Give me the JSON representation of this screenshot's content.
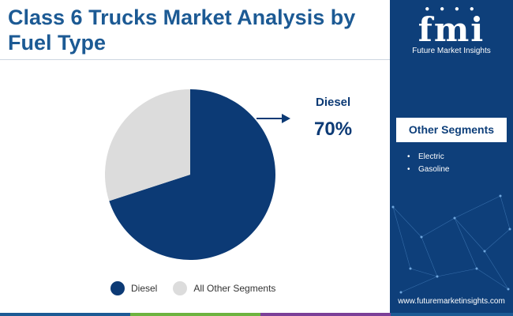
{
  "title": "Class 6 Trucks Market Analysis by Fuel Type",
  "chart_data": {
    "type": "pie",
    "title": "Class 6 Trucks Market Analysis by Fuel Type",
    "slices": [
      {
        "label": "Diesel",
        "value": 70,
        "color": "#0c3a75"
      },
      {
        "label": "All Other Segments",
        "value": 30,
        "color": "#dcdcdc"
      }
    ],
    "callout": {
      "label": "Diesel",
      "value_text": "70%"
    },
    "legend": [
      "Diesel",
      "All Other Segments"
    ],
    "legend_position": "bottom"
  },
  "sidebar": {
    "brand_mark": "fmi",
    "brand_name": "Future Market Insights",
    "segments_title": "Other Segments",
    "segments": [
      "Electric",
      "Gasoline"
    ],
    "url": "www.futuremarketinsights.com",
    "background": "#0e3f7a"
  },
  "colors": {
    "title": "#1c5a94",
    "primary": "#0c3a75",
    "secondary": "#dcdcdc",
    "bottom_bar": [
      "#1c5a94",
      "#6db33f",
      "#7b3f98",
      "#1c5a94"
    ]
  }
}
